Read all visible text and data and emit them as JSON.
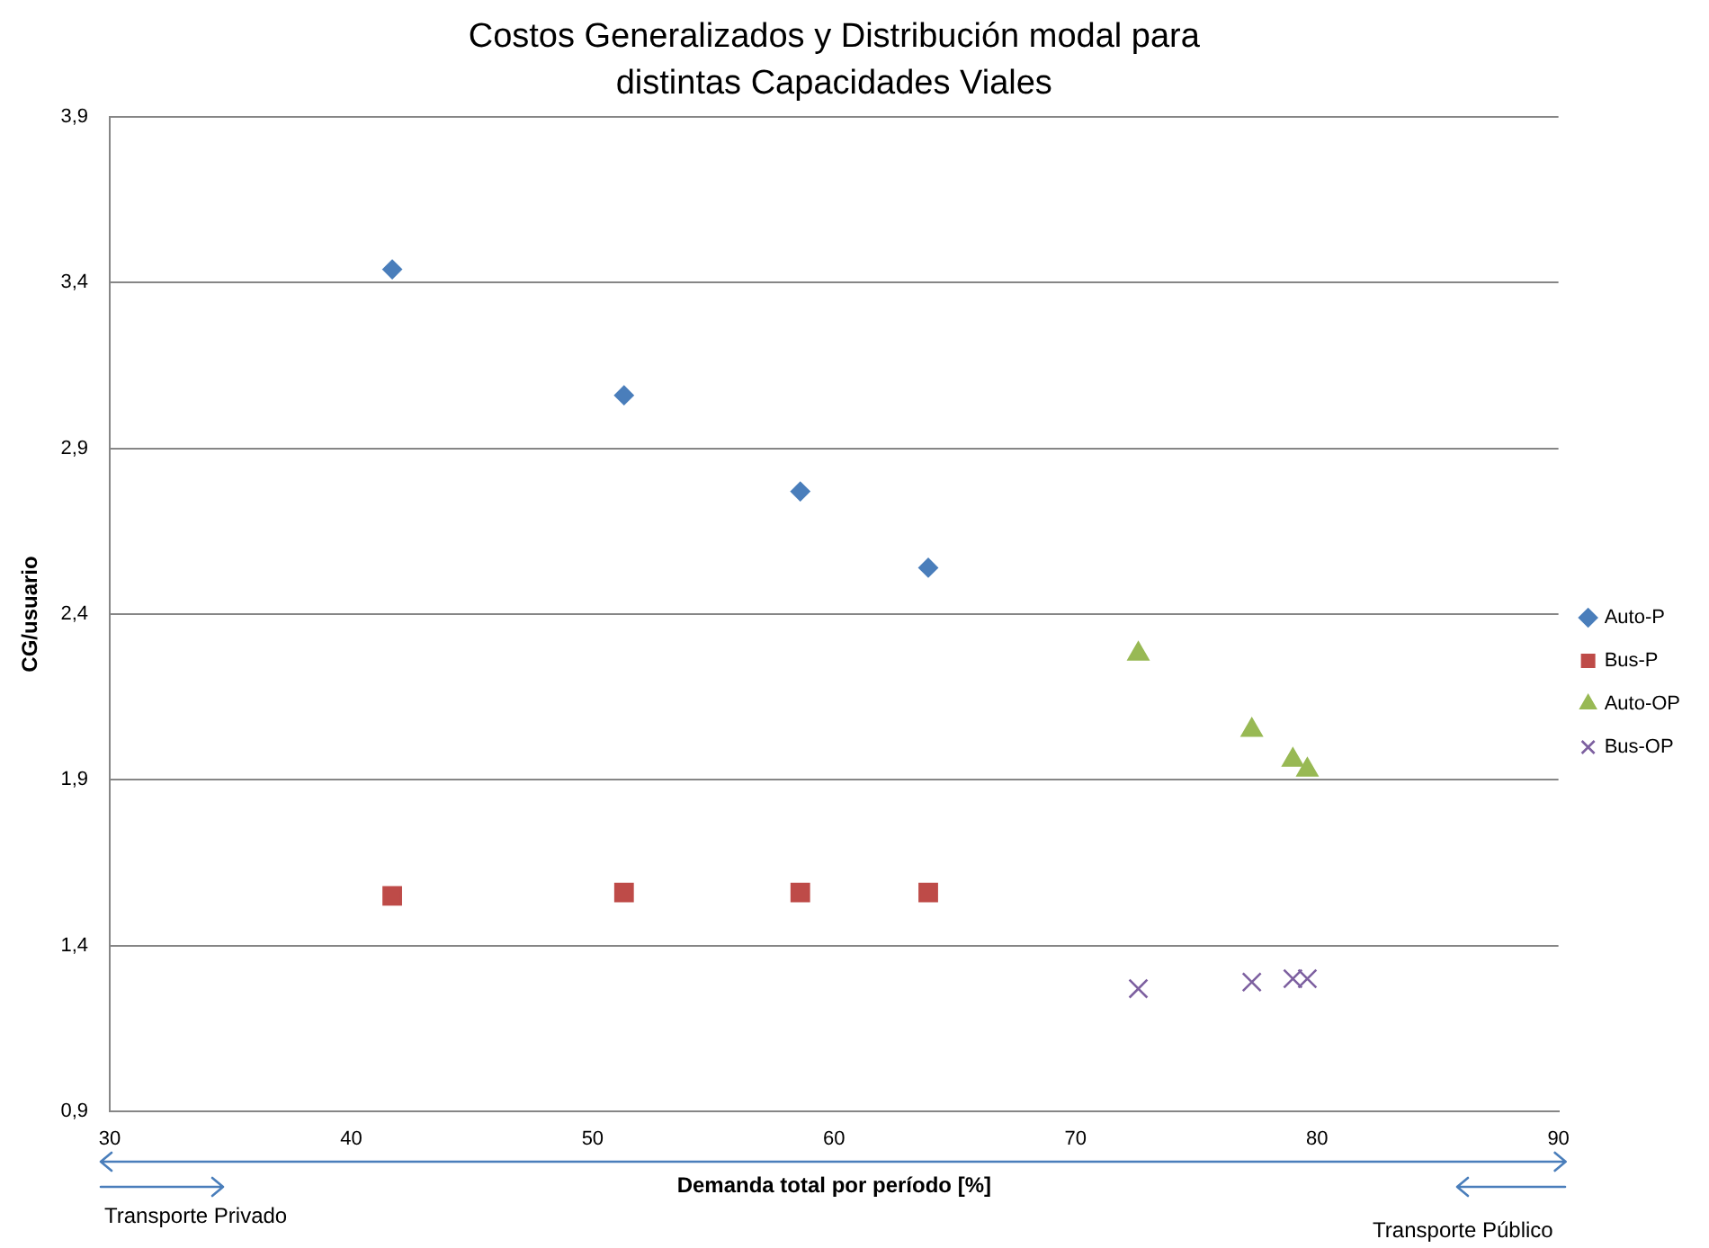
{
  "chart_data": {
    "type": "scatter",
    "title": "Costos Generalizados y Distribución modal para distintas Capacidades Viales",
    "xlabel": "Demanda total por período [%]",
    "ylabel": "CG/usuario",
    "xlim": [
      30,
      90
    ],
    "xticks": [
      30,
      40,
      50,
      60,
      70,
      80,
      90
    ],
    "ylim": [
      0.9,
      3.9
    ],
    "yticks": [
      {
        "value": 0.9,
        "label": "0,9"
      },
      {
        "value": 1.4,
        "label": "1,4"
      },
      {
        "value": 1.9,
        "label": "1,9"
      },
      {
        "value": 2.4,
        "label": "2,4"
      },
      {
        "value": 2.9,
        "label": "2,9"
      },
      {
        "value": 3.4,
        "label": "3,4"
      },
      {
        "value": 3.9,
        "label": "3,9"
      }
    ],
    "grid": "y",
    "legend": "right",
    "annotations": [
      "Transporte Privado",
      "Transporte Público"
    ],
    "series": [
      {
        "name": "Auto-P",
        "color": "#4a7ebb",
        "marker": "diamond",
        "x": [
          41.7,
          51.3,
          58.6,
          63.9
        ],
        "values": [
          3.44,
          3.06,
          2.77,
          2.54
        ]
      },
      {
        "name": "Bus-P",
        "color": "#be4b48",
        "marker": "square",
        "x": [
          41.7,
          51.3,
          58.6,
          63.9
        ],
        "values": [
          1.55,
          1.56,
          1.56,
          1.56
        ]
      },
      {
        "name": "Auto-OP",
        "color": "#98b954",
        "marker": "triangle",
        "x": [
          72.6,
          77.3,
          79.0,
          79.6
        ],
        "values": [
          2.28,
          2.05,
          1.96,
          1.93
        ]
      },
      {
        "name": "Bus-OP",
        "color": "#7d60a0",
        "marker": "cross",
        "x": [
          72.6,
          77.3,
          79.0,
          79.6
        ],
        "values": [
          1.27,
          1.29,
          1.3,
          1.3
        ]
      }
    ]
  }
}
